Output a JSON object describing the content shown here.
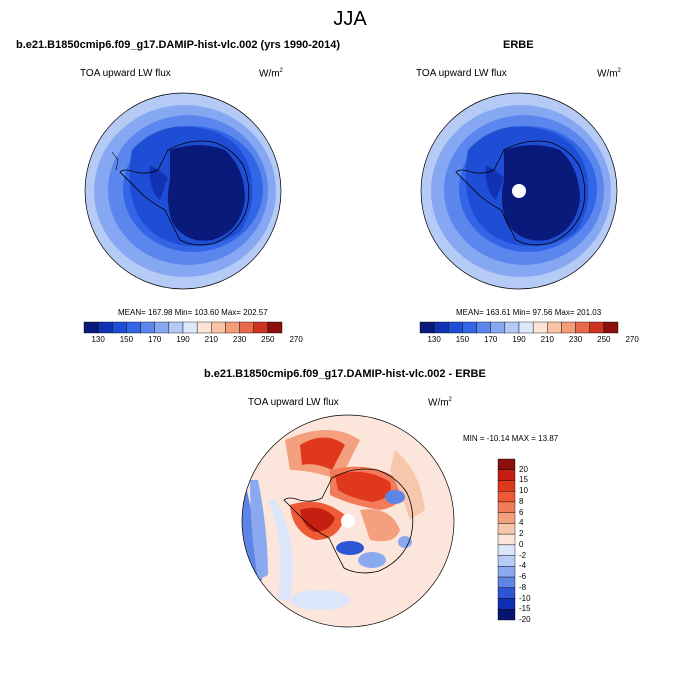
{
  "figure": {
    "title": "JJA",
    "diff_title": "b.e21.B1850cmip6.f09_g17.DAMIP-hist-vlc.002 - ERBE"
  },
  "panels": {
    "model": {
      "header": "b.e21.B1850cmip6.f09_g17.DAMIP-hist-vlc.002 (yrs 1990-2014)",
      "variable": "TOA upward LW flux",
      "units": "W/m",
      "units_exp": "2",
      "stats": "MEAN= 167.98  Min= 103.60  Max= 202.57"
    },
    "obs": {
      "header": "ERBE",
      "variable": "TOA upward LW flux",
      "units": "W/m",
      "units_exp": "2",
      "stats": "MEAN= 163.61  Min= 97.56  Max= 201.03"
    },
    "diff": {
      "variable": "TOA upward LW flux",
      "units": "W/m",
      "units_exp": "2",
      "stats": "MIN = -10.14  MAX =  13.87"
    }
  },
  "colorbar_abs": {
    "colors": [
      "#0a1a7a",
      "#1133b3",
      "#1f4ed6",
      "#3366e6",
      "#5a86ee",
      "#86a8f2",
      "#b5cbf6",
      "#dde8fa",
      "#fbe4d6",
      "#f7c3a6",
      "#f29c79",
      "#e8684a",
      "#cc3322",
      "#8b0f0f"
    ],
    "tick_labels": [
      "130",
      "150",
      "170",
      "190",
      "210",
      "230",
      "250",
      "270"
    ]
  },
  "colorbar_diff": {
    "colors": [
      "#8b0f0f",
      "#c41f10",
      "#e0381c",
      "#ee5a35",
      "#f27c59",
      "#f4a07f",
      "#f7c7ad",
      "#fce6dc",
      "#dce6fa",
      "#b7cbf6",
      "#8aa9f0",
      "#5d85e6",
      "#2c56d4",
      "#0f2fb4",
      "#08156f"
    ],
    "tick_labels": [
      "20",
      "15",
      "10",
      "8",
      "6",
      "4",
      "2",
      "0",
      "-2",
      "-4",
      "-6",
      "-8",
      "-10",
      "-15",
      "-20"
    ]
  }
}
